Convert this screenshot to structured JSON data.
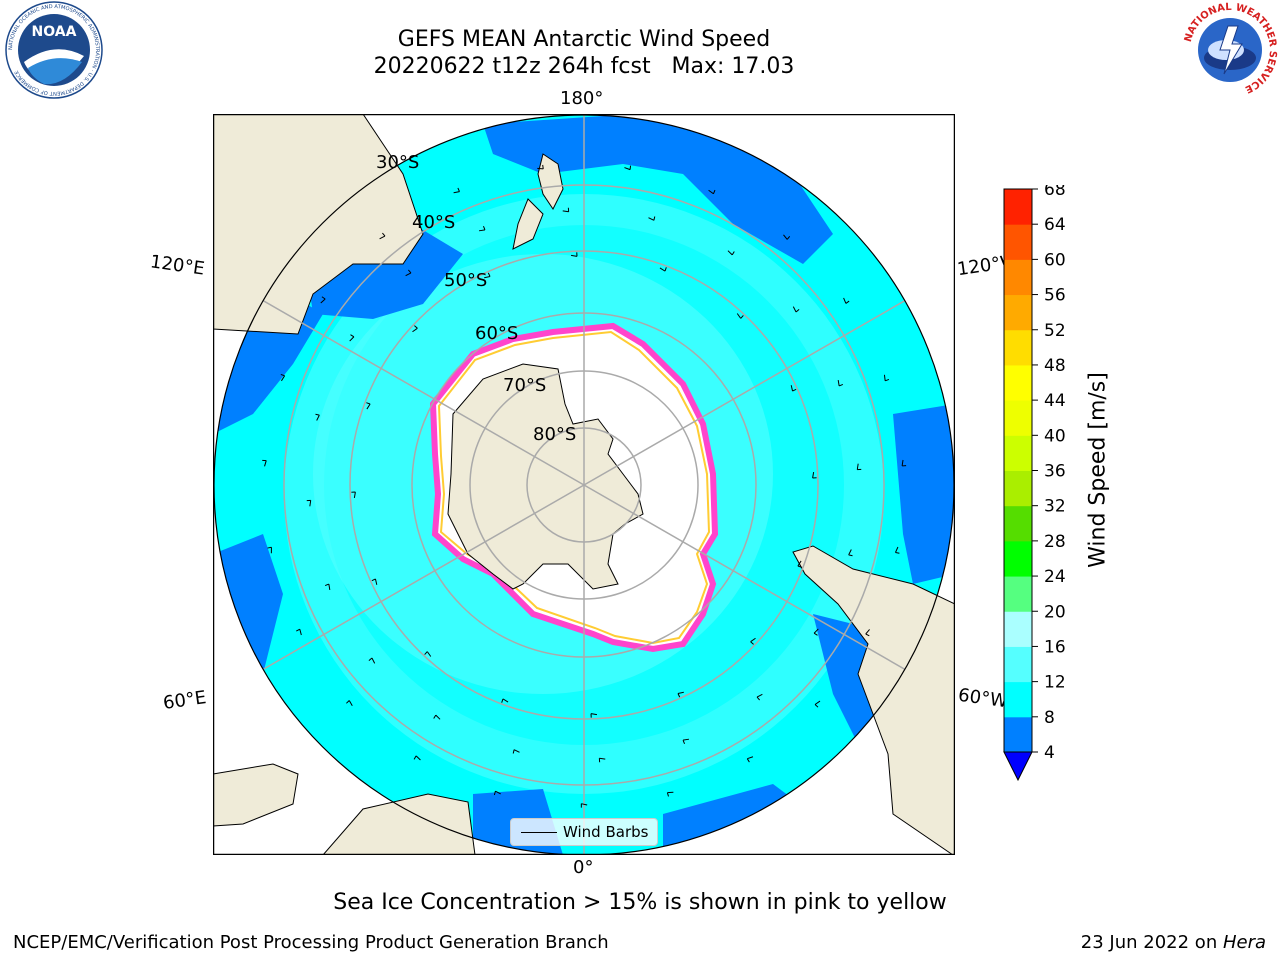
{
  "header": {
    "title_line1": "GEFS MEAN Antarctic Wind Speed",
    "title_line2": "20220622 t12z 264h fcst   Max: 17.03"
  },
  "logos": {
    "left": "NOAA",
    "right": "NATIONAL WEATHER SERVICE",
    "left_ring_text": "NATIONAL OCEANIC AND ATMOSPHERIC ADMINISTRATION · U.S. DEPARTMENT OF COMMERCE"
  },
  "map": {
    "projection": "south-polar-stereographic",
    "longitude_labels": {
      "top": "180°",
      "bottom": "0°",
      "upper_left": "120°E",
      "upper_right": "120°W",
      "lower_left": "60°E",
      "lower_right": "60°W"
    },
    "latitude_labels": [
      "30°S",
      "40°S",
      "50°S",
      "60°S",
      "70°S",
      "80°S"
    ],
    "legend_label": "Wind Barbs",
    "colors": {
      "ocean_base": "#00ffff",
      "ocean_light": "#55ffff",
      "ocean_calm": "#0080ff",
      "land": "#efebd8",
      "sea_ice_edge": "#ff44cc",
      "sea_ice_inner": "#ffcc33"
    }
  },
  "colorbar": {
    "label": "Wind Speed [m/s]",
    "ticks": [
      "4",
      "8",
      "12",
      "16",
      "20",
      "24",
      "28",
      "32",
      "36",
      "40",
      "44",
      "48",
      "52",
      "56",
      "60",
      "64",
      "68"
    ],
    "colors": [
      "#0080ff",
      "#00ffff",
      "#55ffff",
      "#aaffff",
      "#55ff80",
      "#00ff00",
      "#55dd00",
      "#aaee00",
      "#ccff00",
      "#eeff00",
      "#ffff00",
      "#ffdd00",
      "#ffaa00",
      "#ff8800",
      "#ff5500",
      "#ff2200",
      "#ff0000"
    ],
    "underflow_color": "#0000ff"
  },
  "note": "Sea Ice Concentration > 15% is shown in pink to yellow",
  "footer": {
    "left": "NCEP/EMC/Verification Post Processing Product Generation Branch",
    "right_prefix": "23 Jun 2022 on ",
    "right_host": "Hera"
  }
}
